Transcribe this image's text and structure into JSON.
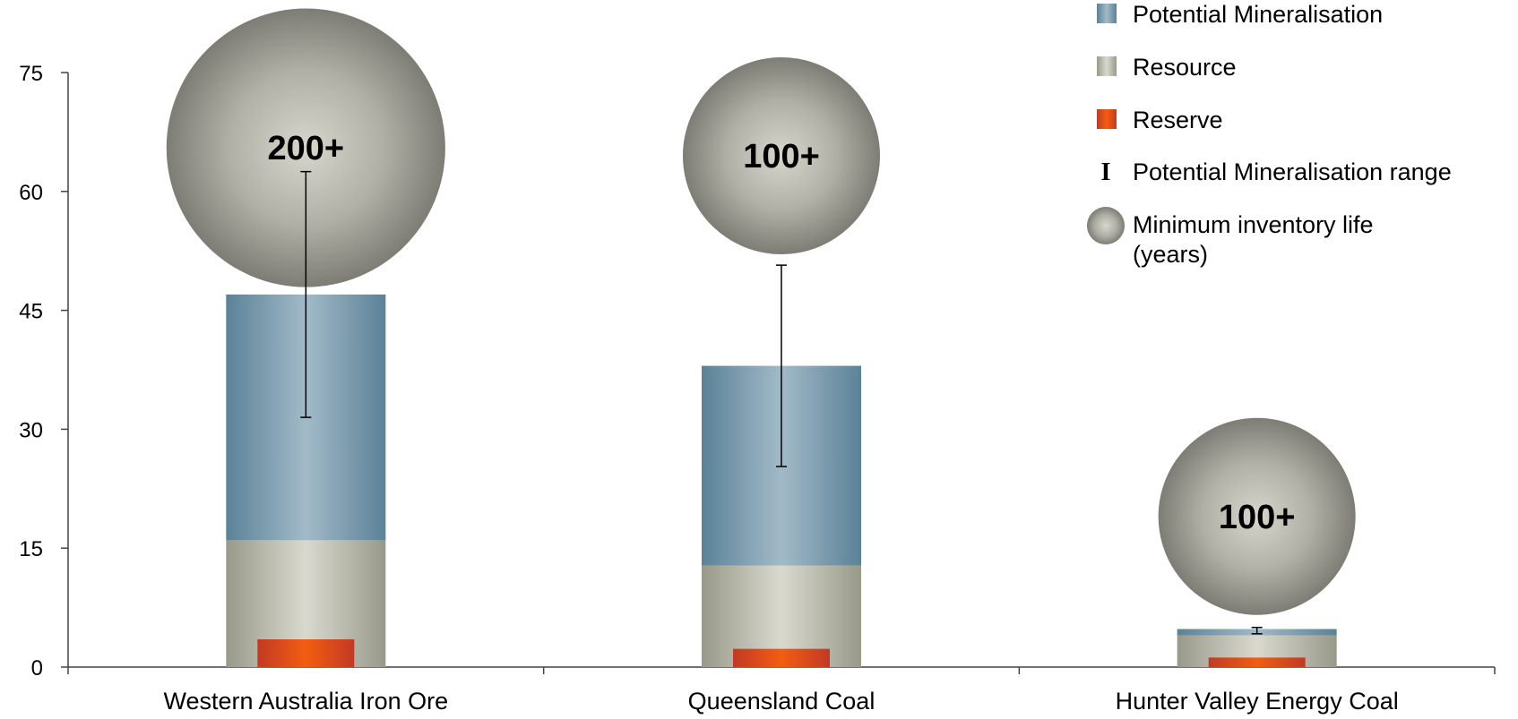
{
  "chart_data": {
    "type": "bar",
    "stacked": true,
    "categories": [
      "Western Australia Iron Ore",
      "Queensland Coal",
      "Hunter Valley Energy Coal"
    ],
    "series": [
      {
        "name": "Reserve",
        "values": [
          3.5,
          2.3,
          1.2
        ],
        "color": "#e04a1c",
        "inset": true
      },
      {
        "name": "Resource",
        "values": [
          16.0,
          12.8,
          4.0
        ],
        "color": "#b9b9a9"
      },
      {
        "name": "Potential Mineralisation",
        "values": [
          31.0,
          25.2,
          0.8
        ],
        "color": "#7f9fb4"
      }
    ],
    "error_bars": {
      "name": "Potential Mineralisation range",
      "low": [
        31.5,
        25.3,
        4.2
      ],
      "high": [
        62.5,
        50.7,
        5.0
      ]
    },
    "bubbles": {
      "name": "Minimum inventory life (years)",
      "labels": [
        "200+",
        "100+",
        "100+"
      ],
      "y": [
        65.5,
        64.5,
        19.0
      ],
      "size": [
        200,
        100,
        100
      ]
    },
    "ylim": [
      0,
      75
    ],
    "yticks": [
      "0",
      "15",
      "30",
      "45",
      "60",
      "75"
    ],
    "xlabel": "",
    "ylabel": "",
    "grid": false,
    "legend": {
      "position": "top-right",
      "items": [
        {
          "label": "Potential Mineralisation",
          "marker": "square",
          "color": "#7f9fb4"
        },
        {
          "label": "Resource",
          "marker": "square",
          "color": "#b9b9a9"
        },
        {
          "label": "Reserve",
          "marker": "square",
          "color": "#e04a1c"
        },
        {
          "label": "Potential Mineralisation range",
          "marker": "I"
        },
        {
          "label": "Minimum inventory life",
          "label2": "(years)",
          "marker": "bubble"
        }
      ]
    }
  }
}
